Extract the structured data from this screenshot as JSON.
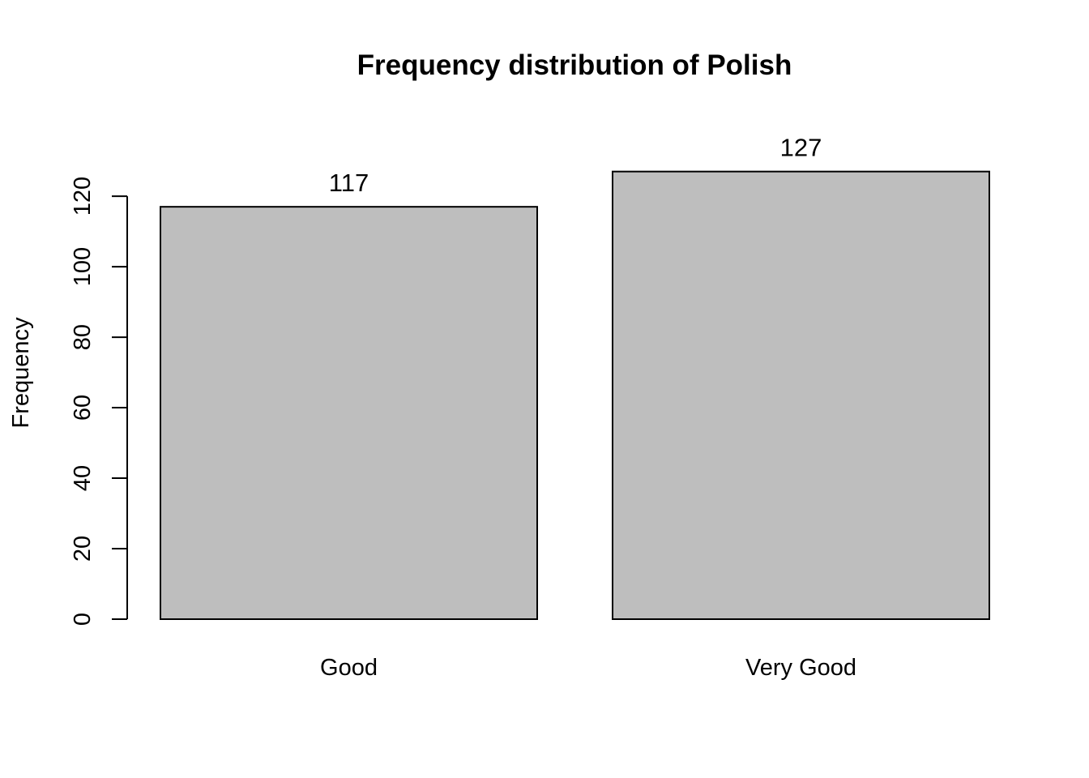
{
  "chart_data": {
    "type": "bar",
    "title": "Frequency distribution of Polish",
    "xlabel": "",
    "ylabel": "Frequency",
    "categories": [
      "Good",
      "Very Good"
    ],
    "values": [
      117,
      127
    ],
    "data_labels": [
      "117",
      "127"
    ],
    "yticks": [
      0,
      20,
      40,
      60,
      80,
      100,
      120
    ],
    "ylim": [
      0,
      127
    ],
    "grid": false,
    "bar_color": "#bebebe"
  }
}
